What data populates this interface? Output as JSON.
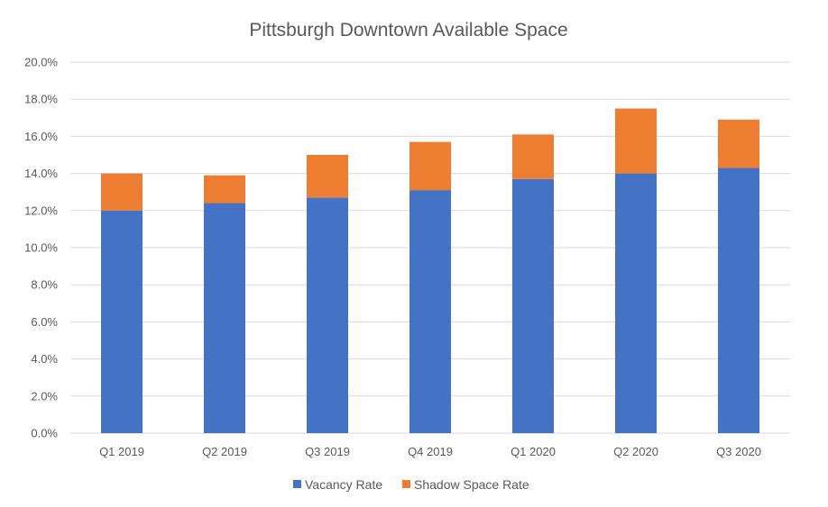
{
  "chart_data": {
    "type": "bar",
    "stacked": true,
    "title": "Pittsburgh Downtown Available Space",
    "xlabel": "",
    "ylabel": "",
    "categories": [
      "Q1 2019",
      "Q2 2019",
      "Q3 2019",
      "Q4 2019",
      "Q1 2020",
      "Q2 2020",
      "Q3 2020"
    ],
    "series": [
      {
        "name": "Vacancy Rate",
        "color": "#4472C4",
        "values": [
          12.0,
          12.4,
          12.7,
          13.1,
          13.7,
          14.0,
          14.3
        ]
      },
      {
        "name": "Shadow Space Rate",
        "color": "#ED7D31",
        "values": [
          2.0,
          1.5,
          2.3,
          2.6,
          2.4,
          3.5,
          2.6
        ]
      }
    ],
    "ylim": [
      0,
      20
    ],
    "yticks": [
      "0.0%",
      "2.0%",
      "4.0%",
      "6.0%",
      "8.0%",
      "10.0%",
      "12.0%",
      "14.0%",
      "16.0%",
      "18.0%",
      "20.0%"
    ],
    "ytick_values": [
      0,
      2,
      4,
      6,
      8,
      10,
      12,
      14,
      16,
      18,
      20
    ],
    "grid": true,
    "legend_position": "bottom"
  }
}
